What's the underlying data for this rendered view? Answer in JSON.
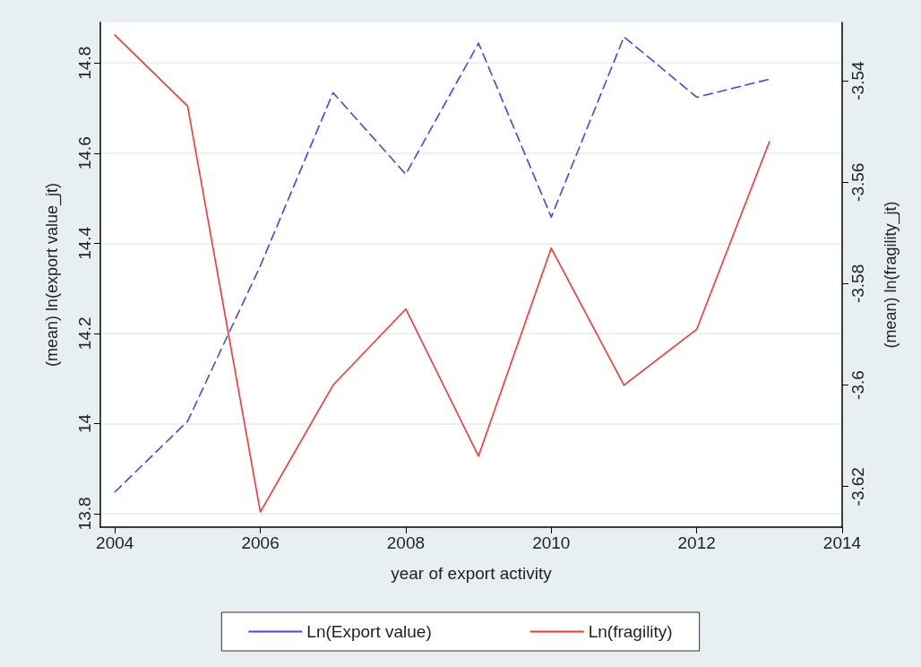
{
  "chart_data": {
    "type": "line",
    "xlabel": "year of export activity",
    "ylabel": "(mean) ln(export value_jt)",
    "y2label": "(mean) ln(fragility_jt)",
    "x": [
      2004,
      2005,
      2006,
      2007,
      2008,
      2009,
      2010,
      2011,
      2012,
      2013
    ],
    "series": [
      {
        "name": "Ln(Export value)",
        "color": "#4444ff",
        "line_style": "dashed",
        "values": [
          13.848,
          14.005,
          14.35,
          14.734,
          14.553,
          14.844,
          14.458,
          14.858,
          14.724,
          14.764
        ]
      },
      {
        "name": "Ln(fragility)",
        "color": "#ff3333",
        "line_style": "solid",
        "axis": "y2",
        "values": [
          -3.531,
          -3.545,
          -3.625,
          -3.6,
          -3.585,
          -3.614,
          -3.573,
          -3.6,
          -3.589,
          -3.552
        ]
      }
    ],
    "xlim": [
      2003.8,
      2014
    ],
    "xticks": [
      2004,
      2006,
      2008,
      2010,
      2012,
      2014
    ],
    "ylim": [
      13.77,
      14.89
    ],
    "yticks": [
      13.8,
      14,
      14.2,
      14.4,
      14.6,
      14.8
    ],
    "y2lim": [
      -3.628,
      -3.5285
    ],
    "y2ticks": [
      -3.62,
      -3.6,
      -3.58,
      -3.56,
      -3.54
    ],
    "grid": "y",
    "legend": "bottom",
    "marker": "none"
  }
}
